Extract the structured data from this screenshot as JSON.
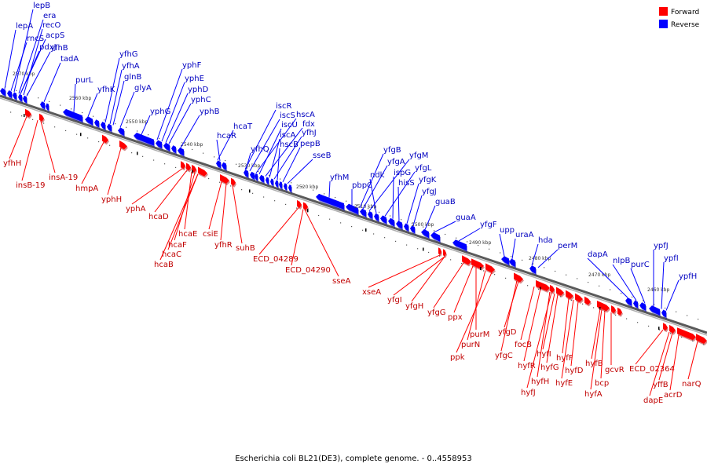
{
  "caption": "Escherichia coli BL21(DE3), complete genome. - 0..4558953",
  "legend": {
    "placement": "top-right",
    "items": [
      {
        "label": "Forward",
        "color": "#ff0000"
      },
      {
        "label": "Reverse",
        "color": "#0000ff"
      }
    ]
  },
  "colors": {
    "forward": "#ff0000",
    "reverse": "#0000ff",
    "backbone": "#808080"
  },
  "ticks": [
    "2570 kbp",
    "2560 kbp",
    "2550 kbp",
    "2540 kbp",
    "2530 kbp",
    "2520 kbp",
    "2510 kbp",
    "2500 kbp",
    "2490 kbp",
    "2480 kbp",
    "2470 kbp",
    "2460 kbp"
  ],
  "reverse_genes": [
    "lepB",
    "era",
    "lepA",
    "recO",
    "rncS",
    "acpS",
    "pdxJ",
    "yfhB",
    "tadA",
    "purL",
    "yfhG",
    "yfhA",
    "glnB",
    "yfhK",
    "glyA",
    "yphF",
    "yphE",
    "yphD",
    "yphC",
    "yphG",
    "yphB",
    "hcaT",
    "hcaR",
    "iscR",
    "iscS",
    "hscA",
    "iscU",
    "fdx",
    "iscA",
    "yfhJ",
    "hscB",
    "pepB",
    "yfhQ",
    "sseB",
    "yfhM",
    "yfgB",
    "yfgM",
    "yfgA",
    "ndk",
    "yfgL",
    "ispG",
    "pbpC",
    "hisS",
    "yfgK",
    "yfgJ",
    "guaB",
    "guaA",
    "yfgF",
    "upp",
    "uraA",
    "hda",
    "perM",
    "dapA",
    "nlpB",
    "purC",
    "ypfJ",
    "ypfI",
    "ypfH"
  ],
  "forward_genes": [
    "yfhH",
    "insB-19",
    "insA-19",
    "hmpA",
    "yphH",
    "yphA",
    "hcaD",
    "hcaE",
    "csiE",
    "hcaF",
    "yfhR",
    "suhB",
    "hcaC",
    "hcaB",
    "ECD_04289",
    "ECD_04290",
    "sseA",
    "xseA",
    "yfgI",
    "yfgH",
    "yfgG",
    "ppx",
    "purM",
    "purN",
    "ppk",
    "yfgD",
    "yfgC",
    "focB",
    "hyfI",
    "hyfR",
    "hyfG",
    "hyfF",
    "hyfH",
    "hyfD",
    "hyfE",
    "hyfJ",
    "hyfB",
    "gcvR",
    "bcp",
    "hyfA",
    "ECD_02364",
    "yffB",
    "dapE",
    "acrD",
    "narQ"
  ]
}
